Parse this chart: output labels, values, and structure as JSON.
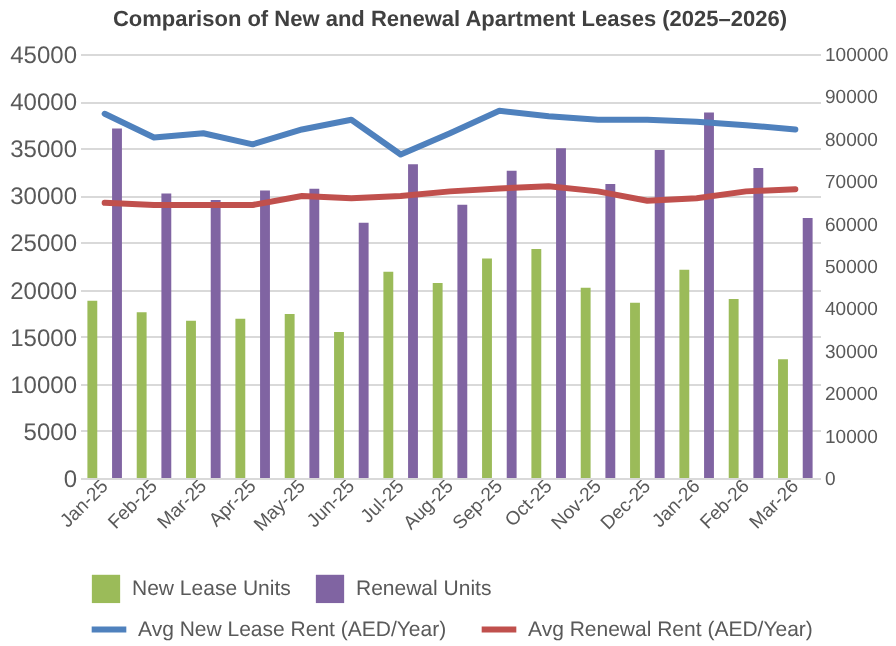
{
  "chart_data": {
    "type": "bar",
    "title": "Comparison of New and Renewal Apartment Leases (2025–2026)",
    "categories": [
      "Jan-25",
      "Feb-25",
      "Mar-25",
      "Apr-25",
      "May-25",
      "Jun-25",
      "Jul-25",
      "Aug-25",
      "Sep-25",
      "Oct-25",
      "Nov-25",
      "Dec-25",
      "Jan-26",
      "Feb-26",
      "Mar-26"
    ],
    "series": [
      {
        "name": "New Lease Units",
        "color": "#9bbb59",
        "values": [
          18800,
          17600,
          16700,
          16900,
          17400,
          15500,
          21900,
          20700,
          23300,
          24300,
          20200,
          18600,
          22100,
          19000,
          12600
        ]
      },
      {
        "name": "Renewal Units",
        "color": "#8064a2",
        "values": [
          37100,
          30200,
          29500,
          30500,
          30700,
          27100,
          33300,
          29000,
          32600,
          35000,
          31200,
          34800,
          38800,
          32900,
          27600
        ]
      },
      {
        "name": "Avg New Lease Rent (AED/Year)",
        "type": "line",
        "axis": "y2",
        "color": "#4f81bd",
        "values": [
          85900,
          80300,
          81300,
          78700,
          82200,
          84500,
          76300,
          81300,
          86600,
          85300,
          84500,
          84500,
          84000,
          83200,
          82200
        ]
      },
      {
        "name": "Avg Renewal Rent (AED/Year)",
        "type": "line",
        "axis": "y2",
        "color": "#c0504d",
        "values": [
          64900,
          64400,
          64400,
          64400,
          66500,
          66000,
          66500,
          67600,
          68300,
          68800,
          67600,
          65400,
          66000,
          67600,
          68100
        ]
      }
    ],
    "ylim": [
      0,
      45000
    ],
    "yticks": [
      0,
      5000,
      10000,
      15000,
      20000,
      25000,
      30000,
      35000,
      40000,
      45000
    ],
    "y2lim": [
      0,
      100000
    ],
    "y2ticks": [
      0,
      10000,
      20000,
      30000,
      40000,
      50000,
      60000,
      70000,
      80000,
      90000,
      100000
    ],
    "grid": "y",
    "legend": "bottom"
  }
}
